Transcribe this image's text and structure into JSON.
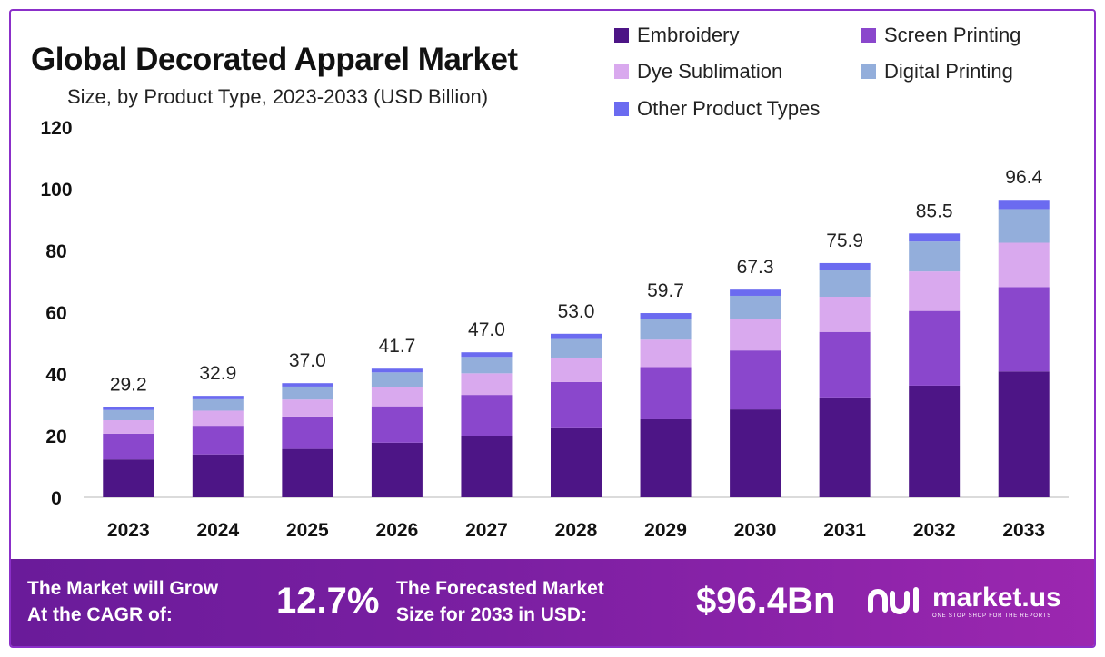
{
  "header": {
    "title": "Global Decorated Apparel Market",
    "subtitle": "Size, by Product Type, 2023-2033 (USD Billion)"
  },
  "colors": {
    "embroidery": "#4d1586",
    "screen_printing": "#8a47cc",
    "dye_sublimation": "#d9a9ee",
    "digital_printing": "#93aedb",
    "other": "#6b6bf0",
    "banner": "#7b1fa2",
    "frame": "#8b2fc9"
  },
  "chart_data": {
    "type": "bar",
    "stacked": true,
    "title": "Global Decorated Apparel Market",
    "subtitle": "Size, by Product Type, 2023-2033 (USD Billion)",
    "categories": [
      "2023",
      "2024",
      "2025",
      "2026",
      "2027",
      "2028",
      "2029",
      "2030",
      "2031",
      "2032",
      "2033"
    ],
    "series": [
      {
        "name": "Embroidery",
        "values": [
          12.3,
          13.9,
          15.7,
          17.7,
          19.9,
          22.4,
          25.3,
          28.5,
          32.1,
          36.2,
          40.8
        ]
      },
      {
        "name": "Screen Printing",
        "values": [
          8.3,
          9.3,
          10.5,
          11.8,
          13.3,
          15.0,
          16.9,
          19.1,
          21.5,
          24.2,
          27.3
        ]
      },
      {
        "name": "Dye Sublimation",
        "values": [
          4.4,
          4.9,
          5.5,
          6.3,
          7.0,
          7.9,
          8.9,
          10.1,
          11.4,
          12.8,
          14.4
        ]
      },
      {
        "name": "Digital Printing",
        "values": [
          3.3,
          3.7,
          4.2,
          4.7,
          5.3,
          6.0,
          6.7,
          7.6,
          8.6,
          9.7,
          10.9
        ]
      },
      {
        "name": "Other Product Types",
        "values": [
          0.9,
          1.1,
          1.1,
          1.2,
          1.5,
          1.7,
          1.9,
          2.0,
          2.3,
          2.6,
          3.0
        ]
      }
    ],
    "totals": [
      "29.2",
      "32.9",
      "37.0",
      "41.7",
      "47.0",
      "53.0",
      "59.7",
      "67.3",
      "75.9",
      "85.5",
      "96.4"
    ],
    "ylim": [
      0,
      120
    ],
    "yticks": [
      "0",
      "20",
      "40",
      "60",
      "80",
      "100",
      "120"
    ],
    "xlabel": "",
    "ylabel": "",
    "grid": false,
    "legend_position": "top-right"
  },
  "banner": {
    "cagr_label_line1": "The Market will Grow",
    "cagr_label_line2": "At the CAGR of:",
    "cagr_value": "12.7%",
    "forecast_label_line1": "The Forecasted Market",
    "forecast_label_line2": "Size for 2033 in USD:",
    "forecast_value": "$96.4Bn",
    "brand_name": "market.us",
    "brand_tagline": "ONE STOP SHOP FOR THE REPORTS"
  }
}
